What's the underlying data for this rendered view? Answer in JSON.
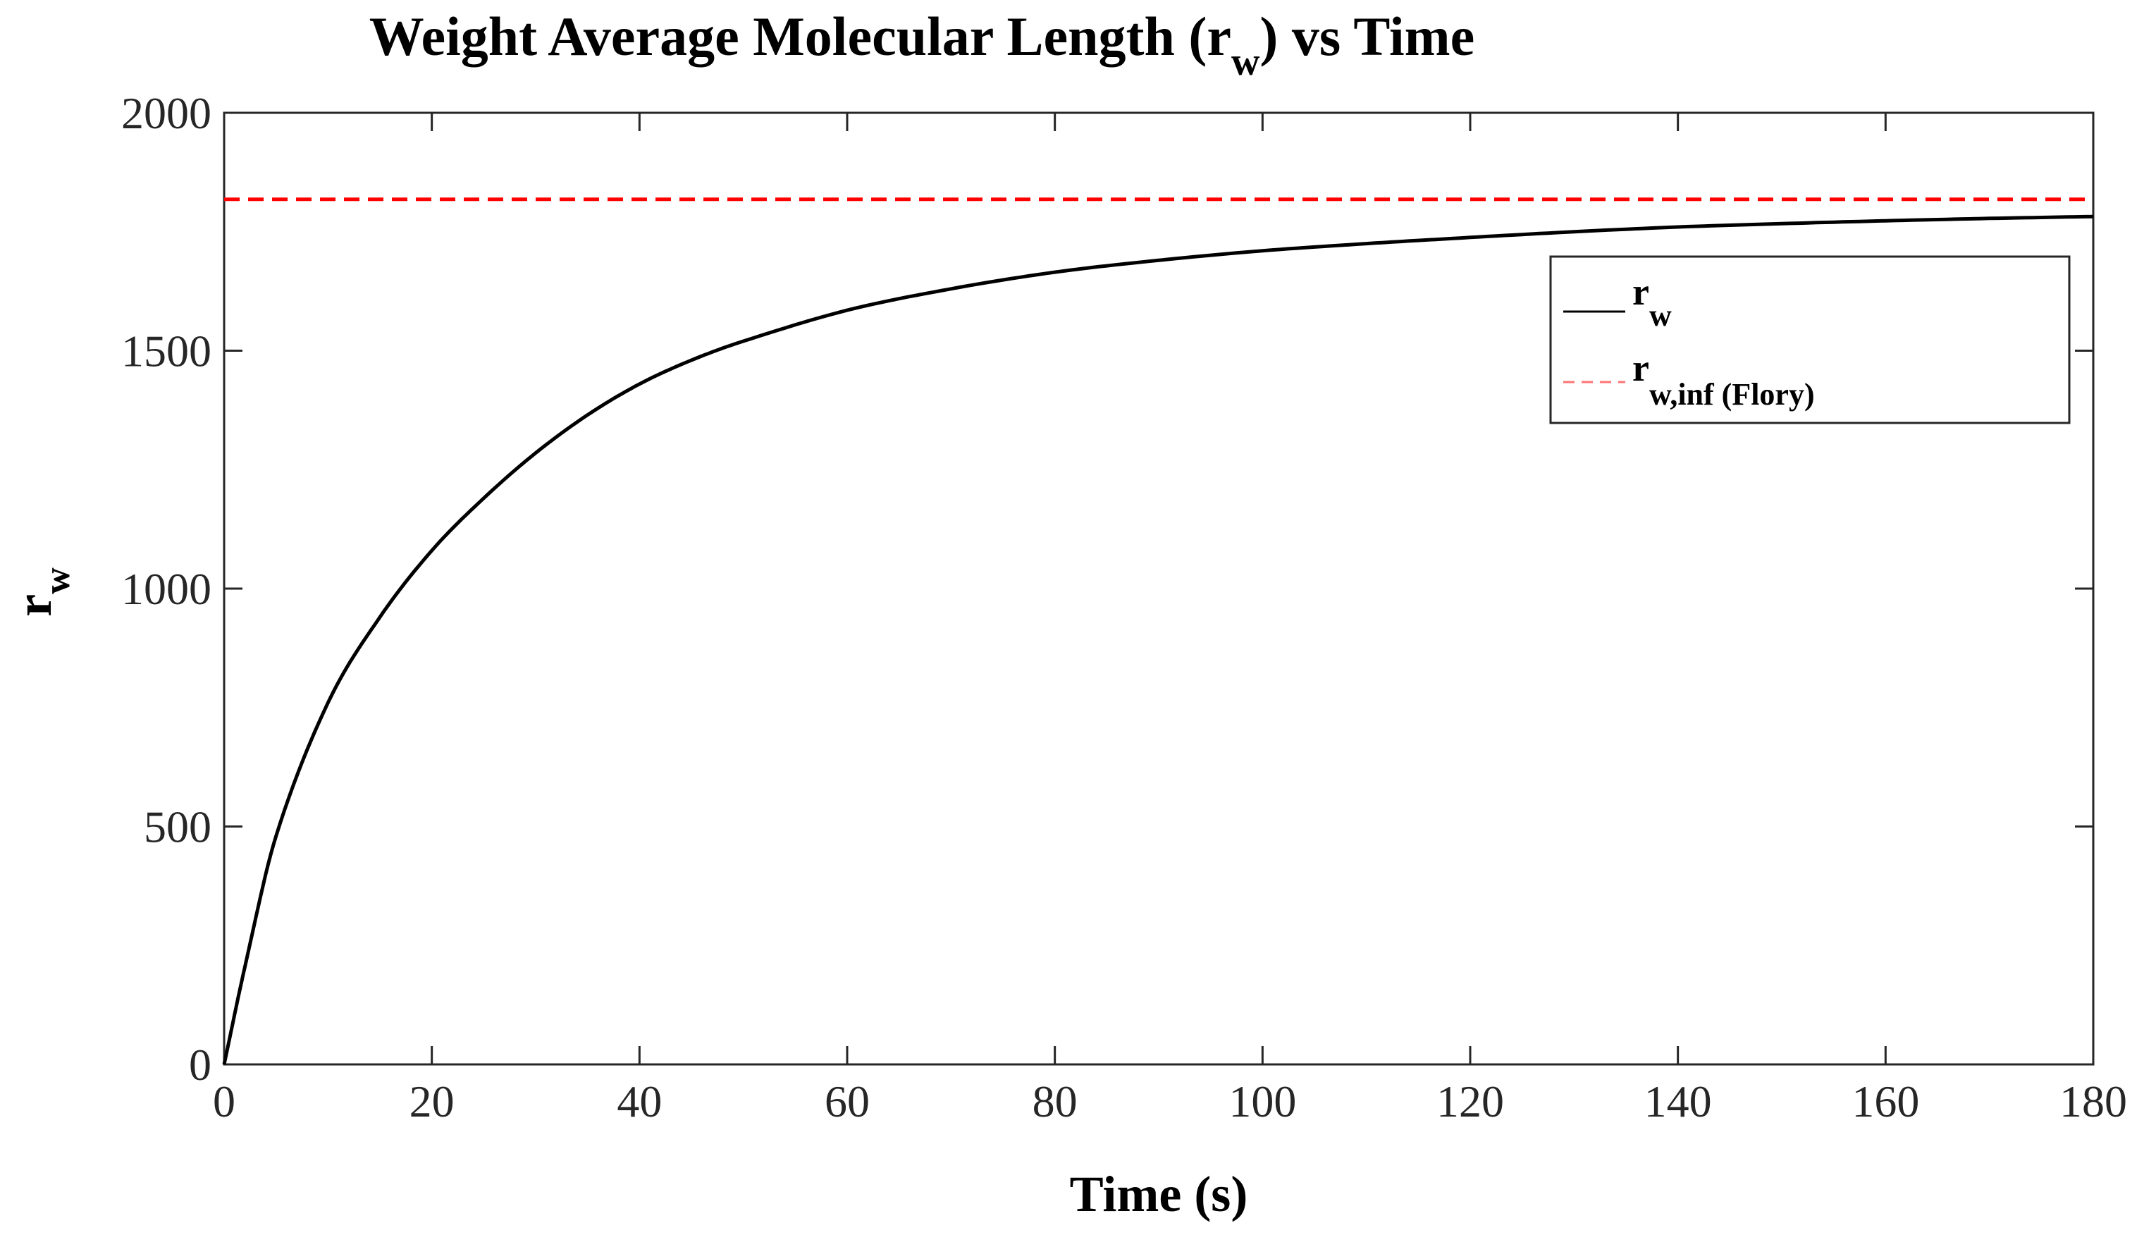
{
  "chart_data": {
    "type": "line",
    "title": "Weight Average Molecular Length (r",
    "title_subscript": "w",
    "title_suffix": ") vs Time",
    "xlabel": "Time (s)",
    "ylabel": "r",
    "ylabel_subscript": "w",
    "xlim": [
      0,
      180
    ],
    "ylim": [
      0,
      2000
    ],
    "xticks": [
      0,
      20,
      40,
      60,
      80,
      100,
      120,
      140,
      160,
      180
    ],
    "yticks": [
      0,
      500,
      1000,
      1500,
      2000
    ],
    "xtick_labels": [
      "0",
      "20",
      "40",
      "60",
      "80",
      "100",
      "120",
      "140",
      "160",
      "180"
    ],
    "ytick_labels": [
      "0",
      "500",
      "1000",
      "1500",
      "2000"
    ],
    "grid": false,
    "legend_position": "top-right",
    "series": [
      {
        "name": "r",
        "name_subscript": "w",
        "style": "solid",
        "color": "#000000",
        "x": [
          0,
          2,
          5,
          10,
          15,
          20,
          25,
          30,
          35,
          40,
          45,
          50,
          60,
          70,
          80,
          90,
          100,
          110,
          120,
          130,
          140,
          150,
          160,
          170,
          180
        ],
        "y": [
          0,
          205,
          480,
          760,
          940,
          1080,
          1190,
          1285,
          1365,
          1430,
          1480,
          1520,
          1585,
          1630,
          1665,
          1690,
          1710,
          1725,
          1738,
          1750,
          1760,
          1767,
          1773,
          1778,
          1782
        ]
      },
      {
        "name": "r",
        "name_subscript": "w,inf (Flory)",
        "style": "dashed",
        "color": "#ff0000",
        "x": [
          0,
          180
        ],
        "y": [
          1818,
          1818
        ]
      }
    ]
  }
}
